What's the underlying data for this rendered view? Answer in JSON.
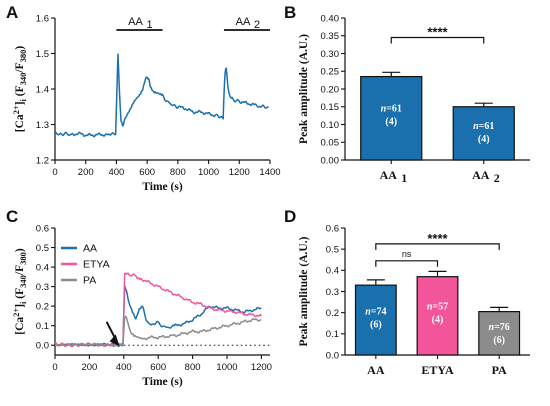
{
  "colors": {
    "aa_blue": "#1a6fad",
    "etya_pink": "#f2559a",
    "pa_gray": "#8c8c8c",
    "axis": "#111111"
  },
  "chart_data": [
    {
      "id": "A",
      "type": "line",
      "panel_letter": "A",
      "xlabel": "Time (s)",
      "ylabel": "[Ca2+]i (F340/F380)",
      "xlim": [
        0,
        1400
      ],
      "ylim": [
        1.2,
        1.6
      ],
      "xticks": [
        0,
        200,
        400,
        600,
        800,
        1000,
        1200,
        1400
      ],
      "yticks": [
        1.2,
        1.3,
        1.4,
        1.5,
        1.6
      ],
      "ytick_labels": [
        "1.2",
        "1.3",
        "1.4",
        "1.5",
        "1.6"
      ],
      "periods": [
        {
          "label": "AA",
          "sub": "1",
          "start": 400,
          "end": 700
        },
        {
          "label": "AA",
          "sub": "2",
          "start": 1100,
          "end": 1400
        }
      ],
      "series": [
        {
          "color": "#1a6fad",
          "x": [
            0,
            30,
            60,
            100,
            150,
            200,
            250,
            300,
            350,
            395,
            405,
            410,
            420,
            430,
            440,
            450,
            470,
            490,
            510,
            530,
            550,
            570,
            590,
            600,
            610,
            620,
            640,
            660,
            680,
            700,
            730,
            760,
            800,
            850,
            900,
            950,
            1000,
            1050,
            1095,
            1102,
            1108,
            1115,
            1125,
            1140,
            1160,
            1200,
            1250,
            1300,
            1350,
            1390
          ],
          "y": [
            1.28,
            1.27,
            1.275,
            1.27,
            1.275,
            1.27,
            1.27,
            1.272,
            1.27,
            1.275,
            1.42,
            1.5,
            1.39,
            1.31,
            1.295,
            1.31,
            1.325,
            1.34,
            1.36,
            1.375,
            1.385,
            1.4,
            1.43,
            1.435,
            1.425,
            1.41,
            1.395,
            1.39,
            1.385,
            1.38,
            1.365,
            1.355,
            1.35,
            1.345,
            1.335,
            1.335,
            1.33,
            1.325,
            1.32,
            1.4,
            1.45,
            1.46,
            1.41,
            1.375,
            1.37,
            1.365,
            1.36,
            1.355,
            1.35,
            1.348
          ]
        }
      ]
    },
    {
      "id": "B",
      "type": "bar",
      "panel_letter": "B",
      "ylabel": "Peak amplitude (A.U.)",
      "ylim": [
        0,
        0.4
      ],
      "yticks": [
        0,
        0.05,
        0.1,
        0.15,
        0.2,
        0.25,
        0.3,
        0.35,
        0.4
      ],
      "ytick_labels": [
        "0.00",
        "0.05",
        "0.10",
        "0.15",
        "0.20",
        "0.25",
        "0.30",
        "0.35",
        "0.40"
      ],
      "categories": [
        {
          "label": "AA",
          "sub": "1"
        },
        {
          "label": "AA",
          "sub": "2"
        }
      ],
      "values": [
        0.235,
        0.15
      ],
      "errors": [
        0.012,
        0.01
      ],
      "colors": [
        "#1a6fad",
        "#1a6fad"
      ],
      "bar_labels": [
        {
          "n_prefix": "n",
          "n_text": "=61",
          "group": "(4)"
        },
        {
          "n_prefix": "n",
          "n_text": "=61",
          "group": "(4)"
        }
      ],
      "significance": [
        {
          "from": 0,
          "to": 1,
          "level": 0.345,
          "text": "****"
        }
      ]
    },
    {
      "id": "C",
      "type": "line",
      "panel_letter": "C",
      "xlabel": "Time (s)",
      "ylabel": "[Ca2+]i (F340/F380)",
      "xlim": [
        0,
        1250
      ],
      "ylim": [
        -0.05,
        0.6
      ],
      "xticks": [
        0,
        200,
        400,
        600,
        800,
        1000,
        1200
      ],
      "yticks": [
        0.0,
        0.1,
        0.2,
        0.3,
        0.4,
        0.5,
        0.6
      ],
      "ytick_labels": [
        "0.0",
        "0.1",
        "0.2",
        "0.3",
        "0.4",
        "0.5",
        "0.6"
      ],
      "baseline": 0.0,
      "arrow_at": 370,
      "legend": [
        "AA",
        "ETYA",
        "PA"
      ],
      "series": [
        {
          "name": "AA",
          "color": "#1a6fad",
          "x": [
            0,
            100,
            200,
            300,
            380,
            395,
            405,
            415,
            430,
            450,
            470,
            490,
            510,
            530,
            560,
            590,
            620,
            650,
            680,
            700,
            750,
            800,
            850,
            900,
            950,
            1000,
            1050,
            1100,
            1150,
            1200
          ],
          "y": [
            0.0,
            0.005,
            0.0,
            0.005,
            0.0,
            0.005,
            0.3,
            0.28,
            0.22,
            0.17,
            0.13,
            0.18,
            0.2,
            0.13,
            0.1,
            0.12,
            0.1,
            0.09,
            0.095,
            0.1,
            0.11,
            0.13,
            0.16,
            0.2,
            0.19,
            0.19,
            0.18,
            0.17,
            0.18,
            0.19
          ]
        },
        {
          "name": "ETYA",
          "color": "#f2559a",
          "x": [
            0,
            100,
            200,
            300,
            380,
            395,
            405,
            420,
            440,
            460,
            480,
            500,
            550,
            600,
            650,
            700,
            750,
            800,
            850,
            900,
            950,
            1000,
            1050,
            1100,
            1150,
            1200
          ],
          "y": [
            0.005,
            0.0,
            0.005,
            0.0,
            0.005,
            0.005,
            0.36,
            0.37,
            0.35,
            0.36,
            0.34,
            0.34,
            0.32,
            0.3,
            0.28,
            0.26,
            0.24,
            0.22,
            0.21,
            0.19,
            0.18,
            0.175,
            0.17,
            0.16,
            0.155,
            0.15
          ]
        },
        {
          "name": "PA",
          "color": "#8c8c8c",
          "x": [
            0,
            100,
            200,
            300,
            380,
            395,
            405,
            420,
            440,
            460,
            480,
            500,
            550,
            600,
            650,
            700,
            750,
            800,
            850,
            900,
            950,
            1000,
            1050,
            1100,
            1150,
            1200
          ],
          "y": [
            0.0,
            0.0,
            0.005,
            0.0,
            0.0,
            0.005,
            0.15,
            0.13,
            0.07,
            0.05,
            0.04,
            0.03,
            0.04,
            0.04,
            0.045,
            0.05,
            0.06,
            0.07,
            0.07,
            0.08,
            0.09,
            0.1,
            0.11,
            0.12,
            0.13,
            0.13
          ]
        }
      ]
    },
    {
      "id": "D",
      "type": "bar",
      "panel_letter": "D",
      "ylabel": "Peak amplitude (A.U.)",
      "ylim": [
        0,
        0.6
      ],
      "yticks": [
        0,
        0.1,
        0.2,
        0.3,
        0.4,
        0.5,
        0.6
      ],
      "ytick_labels": [
        "0.0",
        "0.1",
        "0.2",
        "0.3",
        "0.4",
        "0.5",
        "0.6"
      ],
      "categories": [
        {
          "label": "AA",
          "sub": ""
        },
        {
          "label": "ETYA",
          "sub": ""
        },
        {
          "label": "PA",
          "sub": ""
        }
      ],
      "values": [
        0.33,
        0.37,
        0.205
      ],
      "errors": [
        0.025,
        0.025,
        0.02
      ],
      "colors": [
        "#1a6fad",
        "#f2559a",
        "#8c8c8c"
      ],
      "bar_labels": [
        {
          "n_prefix": "n",
          "n_text": "=74",
          "group": "(6)"
        },
        {
          "n_prefix": "n",
          "n_text": "=57",
          "group": "(4)"
        },
        {
          "n_prefix": "n",
          "n_text": "=76",
          "group": "(6)"
        }
      ],
      "significance": [
        {
          "from": 0,
          "to": 1,
          "level": 0.445,
          "text": "ns"
        },
        {
          "from": 0,
          "to": 2,
          "level": 0.525,
          "text": "****"
        }
      ]
    }
  ]
}
